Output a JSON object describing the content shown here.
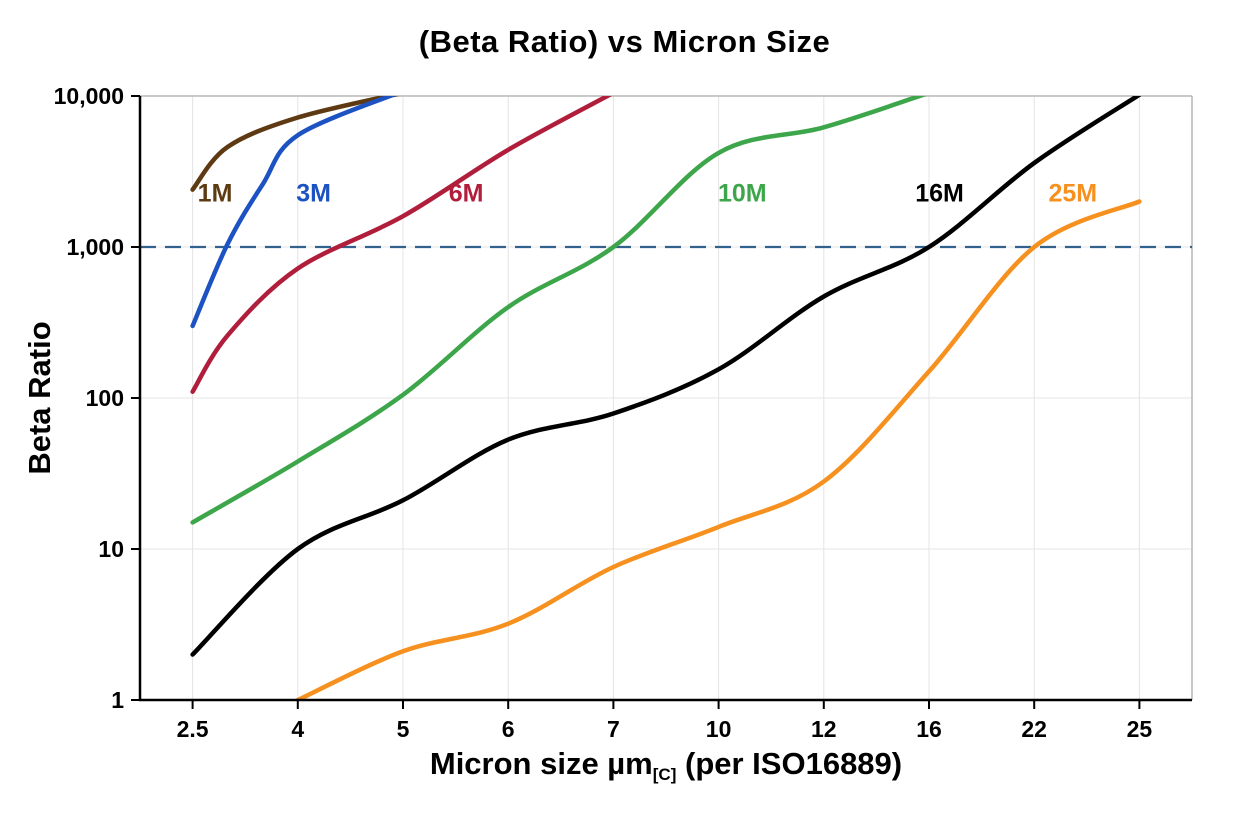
{
  "chart": {
    "title": "(Beta Ratio) vs Micron Size",
    "ylabel": "Beta Ratio",
    "xlabel_main": "Micron size µm",
    "xlabel_sub": "[C]",
    "xlabel_rest": " (per ISO16889)"
  },
  "chart_data": {
    "type": "line",
    "title": "(Beta Ratio) vs Micron Size",
    "xlabel": "Micron size µm[C] (per ISO16889)",
    "ylabel": "Beta Ratio",
    "x_axis": {
      "scale": "ordinal",
      "categories": [
        2.5,
        4,
        5,
        6,
        7,
        10,
        12,
        16,
        22,
        25
      ],
      "tick_labels": [
        "2.5",
        "4",
        "5",
        "6",
        "7",
        "10",
        "12",
        "16",
        "22",
        "25"
      ]
    },
    "y_axis": {
      "scale": "log",
      "range": [
        1,
        10000
      ],
      "ticks": [
        1,
        10,
        100,
        1000,
        10000
      ],
      "tick_labels": [
        "1",
        "10",
        "100",
        "1,000",
        "10,000"
      ]
    },
    "grid_color": "#e4e4e4",
    "axis_color": "#000000",
    "frame_color": "#b7b7b7",
    "reference_line": {
      "y": 1000,
      "style": "dashed",
      "color": "#33618d"
    },
    "series": [
      {
        "name": "1M",
        "color": "#5d3a12",
        "label_pos": [
          2.82,
          2300
        ],
        "points": [
          [
            2.5,
            2400
          ],
          [
            3,
            4600
          ],
          [
            4,
            7200
          ],
          [
            5,
            10500
          ]
        ]
      },
      {
        "name": "3M",
        "color": "#1d52c2",
        "label_pos": [
          4.15,
          2300
        ],
        "points": [
          [
            2.5,
            300
          ],
          [
            3,
            1050
          ],
          [
            3.5,
            2600
          ],
          [
            4,
            5500
          ],
          [
            5,
            10800
          ]
        ]
      },
      {
        "name": "6M",
        "color": "#b01e3c",
        "label_pos": [
          5.6,
          2300
        ],
        "points": [
          [
            2.5,
            110
          ],
          [
            3,
            260
          ],
          [
            4,
            720
          ],
          [
            5,
            1600
          ],
          [
            6,
            4400
          ],
          [
            7,
            10500
          ]
        ]
      },
      {
        "name": "10M",
        "color": "#3da64b",
        "label_pos": [
          10.45,
          2300
        ],
        "points": [
          [
            2.5,
            15
          ],
          [
            4,
            38
          ],
          [
            5,
            105
          ],
          [
            6,
            400
          ],
          [
            7,
            1000
          ],
          [
            10,
            4200
          ],
          [
            12,
            6200
          ],
          [
            16,
            10500
          ]
        ]
      },
      {
        "name": "16M",
        "color": "#000000",
        "label_pos": [
          16.6,
          2300
        ],
        "points": [
          [
            2.5,
            2
          ],
          [
            4,
            10
          ],
          [
            5,
            21
          ],
          [
            6,
            53
          ],
          [
            7,
            79
          ],
          [
            10,
            155
          ],
          [
            12,
            470
          ],
          [
            16,
            1000
          ],
          [
            22,
            3600
          ],
          [
            25,
            10200
          ]
        ]
      },
      {
        "name": "25M",
        "color": "#f6901e",
        "label_pos": [
          23.1,
          2300
        ],
        "points": [
          [
            4,
            1
          ],
          [
            5,
            2.1
          ],
          [
            6,
            3.2
          ],
          [
            7,
            7.6
          ],
          [
            10,
            14
          ],
          [
            12,
            28
          ],
          [
            16,
            150
          ],
          [
            22,
            1000
          ],
          [
            25,
            2000
          ]
        ]
      }
    ]
  }
}
